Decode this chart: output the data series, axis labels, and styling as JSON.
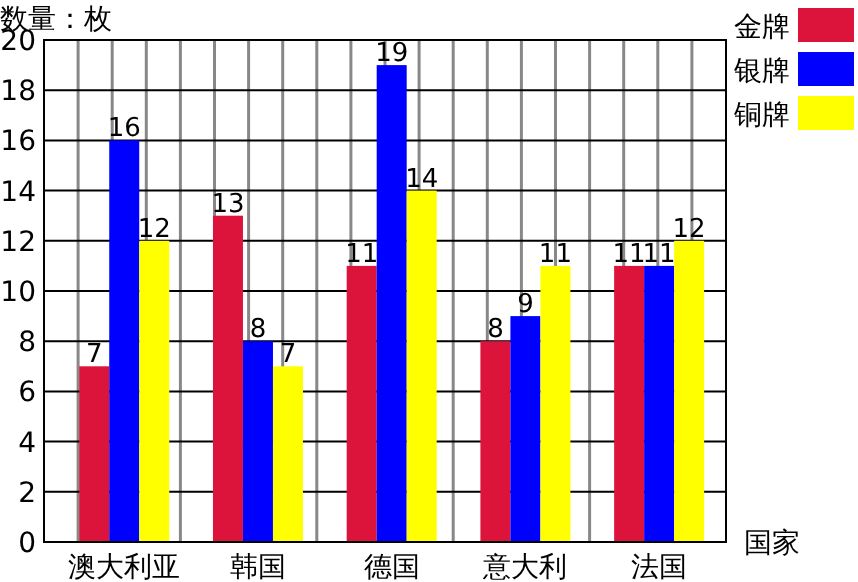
{
  "chart_data": {
    "type": "bar",
    "xlabel": "国家",
    "ylabel": "数量：枚",
    "categories": [
      "澳大利亚",
      "韩国",
      "德国",
      "意大利",
      "法国"
    ],
    "series": [
      {
        "name": "金牌",
        "color": "#dc143c",
        "values": [
          7,
          13,
          11,
          8,
          11
        ]
      },
      {
        "name": "银牌",
        "color": "#0000ff",
        "values": [
          16,
          8,
          19,
          9,
          11
        ]
      },
      {
        "name": "铜牌",
        "color": "#ffff00",
        "values": [
          12,
          7,
          14,
          11,
          12
        ]
      }
    ],
    "ylim": [
      0,
      20
    ],
    "yticks": [
      0,
      2,
      4,
      6,
      8,
      10,
      12,
      14,
      16,
      18,
      20
    ],
    "grid": true,
    "legend": "top right",
    "data_labels": true
  }
}
